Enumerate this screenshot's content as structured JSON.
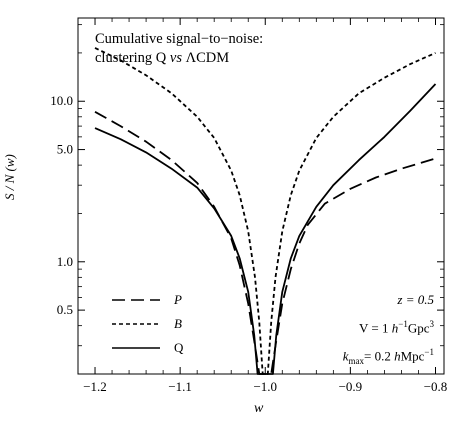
{
  "chart_data": {
    "type": "line",
    "title_line1": "Cumulative signal−to−noise:",
    "title_line2_pre": "clustering Q ",
    "title_line2_em": "vs",
    "title_line2_post": " ΛCDM",
    "xlabel": "w",
    "ylabel": "S / N (w)",
    "xlim": [
      -1.22,
      -0.79
    ],
    "ylim": [
      0.2,
      33
    ],
    "yscale": "log",
    "grid": false,
    "legend_position": "bottom-left",
    "x_ticks": [
      {
        "value": -1.2,
        "label": "−1.2"
      },
      {
        "value": -1.1,
        "label": "−1.1"
      },
      {
        "value": -1.0,
        "label": "−1.0"
      },
      {
        "value": -0.9,
        "label": "−0.9"
      },
      {
        "value": -0.8,
        "label": "−0.8"
      }
    ],
    "y_ticks": [
      {
        "value": 0.5,
        "label": "0.5"
      },
      {
        "value": 1.0,
        "label": "1.0"
      },
      {
        "value": 5.0,
        "label": "5.0"
      },
      {
        "value": 10.0,
        "label": "10.0"
      }
    ],
    "annotations": {
      "z": "z = 0.5",
      "volume_pre": "V = 1 ",
      "volume_h": "h",
      "volume_exp": "−1",
      "volume_unit": "Gpc",
      "volume_unit_exp": "3",
      "kmax_k": "k",
      "kmax_sub": "max",
      "kmax_mid": "= 0.2 ",
      "kmax_h": "h",
      "kmax_unit": "Mpc",
      "kmax_exp": "−1"
    },
    "series": [
      {
        "name": "P",
        "dash": "13,6",
        "points": [
          [
            -1.2,
            8.6
          ],
          [
            -1.17,
            7.0
          ],
          [
            -1.14,
            5.6
          ],
          [
            -1.11,
            4.3
          ],
          [
            -1.08,
            3.1
          ],
          [
            -1.06,
            2.2
          ],
          [
            -1.04,
            1.4
          ],
          [
            -1.03,
            0.95
          ],
          [
            -1.02,
            0.55
          ],
          [
            -1.012,
            0.3
          ],
          [
            -1.007,
            0.2
          ],
          [
            -0.993,
            0.2
          ],
          [
            -0.988,
            0.3
          ],
          [
            -0.98,
            0.55
          ],
          [
            -0.97,
            0.9
          ],
          [
            -0.96,
            1.3
          ],
          [
            -0.95,
            1.7
          ],
          [
            -0.93,
            2.3
          ],
          [
            -0.9,
            2.85
          ],
          [
            -0.87,
            3.35
          ],
          [
            -0.84,
            3.8
          ],
          [
            -0.8,
            4.4
          ]
        ]
      },
      {
        "name": "B",
        "dash": "4,3",
        "points": [
          [
            -1.2,
            21.5
          ],
          [
            -1.17,
            18.0
          ],
          [
            -1.14,
            14.5
          ],
          [
            -1.11,
            11.2
          ],
          [
            -1.08,
            8.0
          ],
          [
            -1.06,
            5.9
          ],
          [
            -1.04,
            3.7
          ],
          [
            -1.03,
            2.6
          ],
          [
            -1.02,
            1.55
          ],
          [
            -1.012,
            0.8
          ],
          [
            -1.007,
            0.42
          ],
          [
            -1.003,
            0.2
          ],
          [
            -0.997,
            0.2
          ],
          [
            -0.993,
            0.42
          ],
          [
            -0.988,
            0.8
          ],
          [
            -0.98,
            1.55
          ],
          [
            -0.97,
            2.6
          ],
          [
            -0.96,
            3.7
          ],
          [
            -0.94,
            5.9
          ],
          [
            -0.92,
            8.0
          ],
          [
            -0.89,
            11.2
          ],
          [
            -0.86,
            14.0
          ],
          [
            -0.83,
            17.0
          ],
          [
            -0.8,
            20.0
          ]
        ]
      },
      {
        "name": "Q",
        "dash": "",
        "points": [
          [
            -1.2,
            6.8
          ],
          [
            -1.17,
            5.8
          ],
          [
            -1.14,
            4.8
          ],
          [
            -1.11,
            3.8
          ],
          [
            -1.08,
            2.9
          ],
          [
            -1.06,
            2.15
          ],
          [
            -1.04,
            1.45
          ],
          [
            -1.03,
            1.05
          ],
          [
            -1.02,
            0.65
          ],
          [
            -1.013,
            0.35
          ],
          [
            -1.009,
            0.2
          ],
          [
            -0.991,
            0.2
          ],
          [
            -0.987,
            0.35
          ],
          [
            -0.98,
            0.65
          ],
          [
            -0.97,
            1.05
          ],
          [
            -0.96,
            1.45
          ],
          [
            -0.94,
            2.2
          ],
          [
            -0.92,
            3.0
          ],
          [
            -0.89,
            4.3
          ],
          [
            -0.86,
            6.0
          ],
          [
            -0.83,
            8.7
          ],
          [
            -0.8,
            12.8
          ]
        ]
      }
    ]
  }
}
